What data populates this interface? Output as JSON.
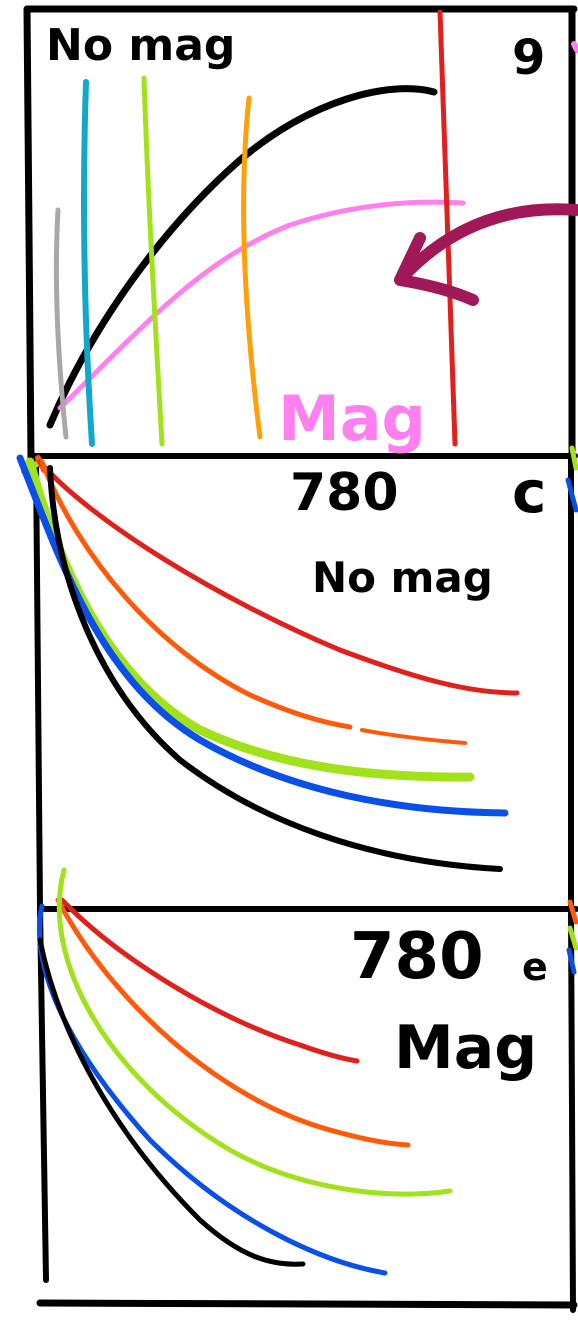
{
  "panels": [
    {
      "id": "top",
      "label": "No mag",
      "corner": "9"
    },
    {
      "id": "middle",
      "label_number": "780",
      "label_text": "No mag",
      "corner": "c"
    },
    {
      "id": "bottom",
      "label_number": "780",
      "label_suffix": "e",
      "label_text": "Mag"
    }
  ],
  "annotations": {
    "mag_label": "Mag"
  },
  "colors": {
    "black": "#000000",
    "red": "#e0201c",
    "orange": "#ff5a0a",
    "green": "#a2e21c",
    "blue": "#0a50e6",
    "cyan": "#10a8cc",
    "grey": "#a8a8a8",
    "amber": "#ffa00a",
    "pink": "#ff80ee",
    "magenta": "#a01858"
  }
}
